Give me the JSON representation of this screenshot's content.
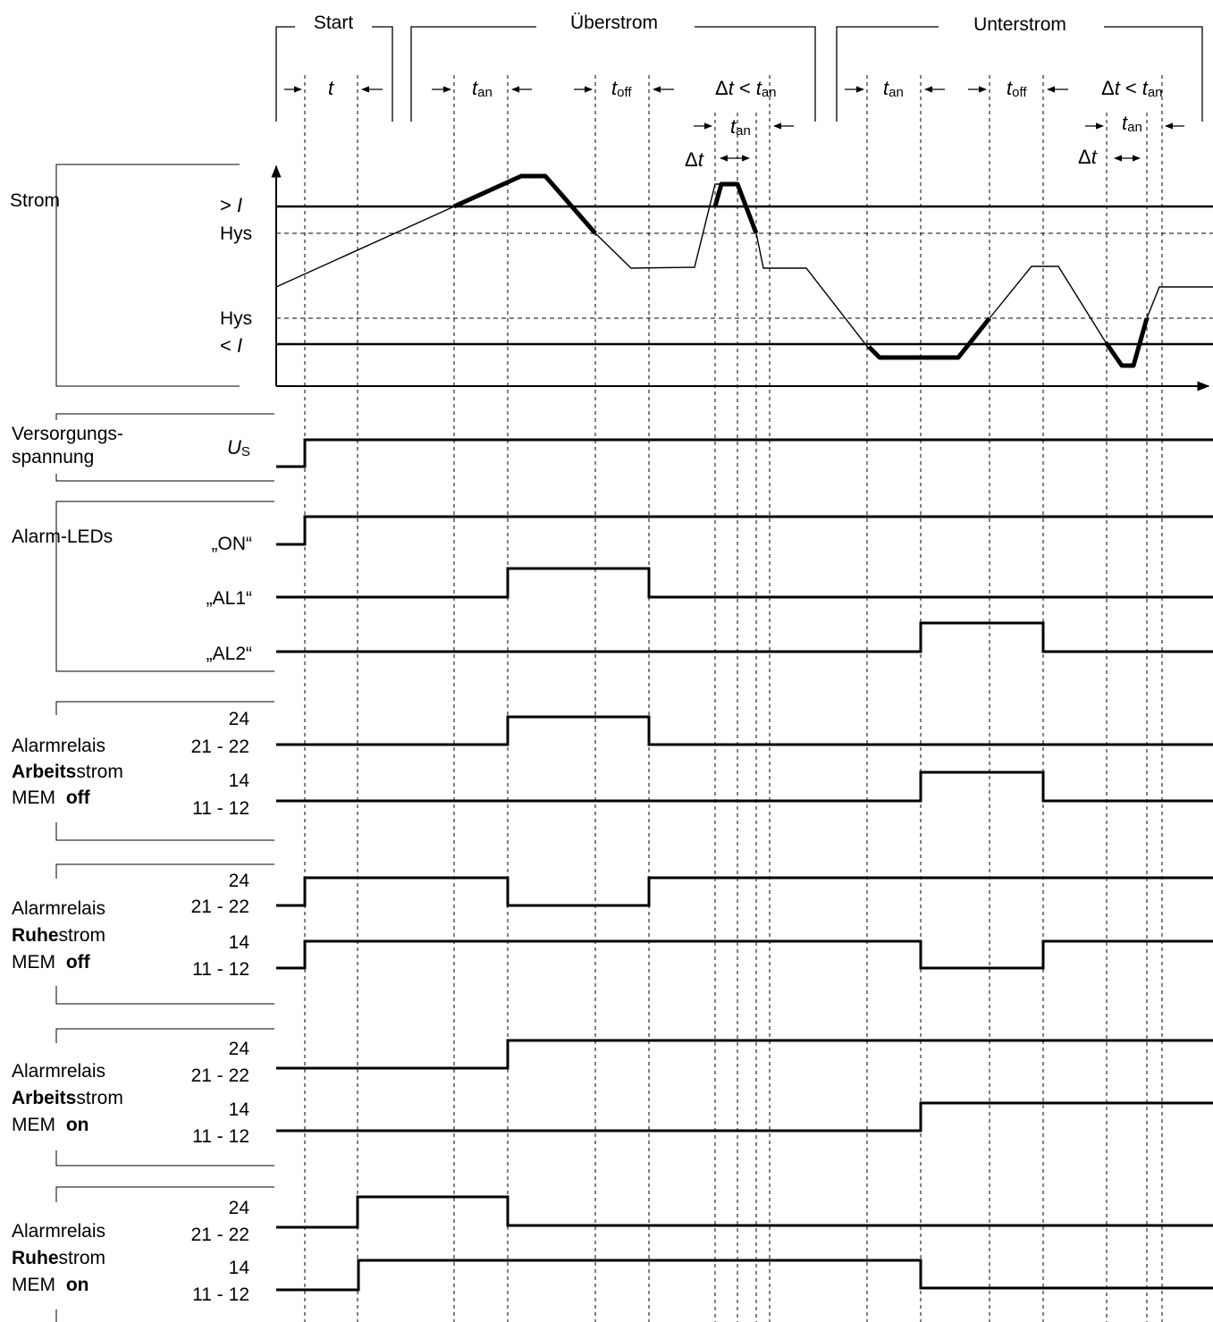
{
  "phases": {
    "start": "Start",
    "ueberstrom": "Überstrom",
    "unterstrom": "Unterstrom"
  },
  "timing": {
    "t": "t",
    "t_an": "t",
    "an_sub": "an",
    "t_off": "t",
    "off_sub": "off",
    "delta": "Δ",
    "less_than": "<"
  },
  "strom": {
    "title": "Strom",
    "over_threshold": "> I",
    "hys_upper": "Hys",
    "hys_lower": "Hys",
    "under_threshold": "< I"
  },
  "supply": {
    "label_line1": "Versorgungs-",
    "label_line2": "spannung",
    "symbol": "U",
    "symbol_sub": "S"
  },
  "leds": {
    "title": "Alarm-LEDs",
    "on": "„ON“",
    "al1": "„AL1“",
    "al2": "„AL2“"
  },
  "contacts": {
    "c24": "24",
    "c21_22": "21 - 22",
    "c14": "14",
    "c11_12": "11 - 12"
  },
  "relays": [
    {
      "line1": "Alarmrelais",
      "line2_bold": "Arbeits",
      "line2_rest": "strom",
      "line3": "MEM ",
      "line3_bold": "off"
    },
    {
      "line1": "Alarmrelais",
      "line2_bold": "Ruhe",
      "line2_rest": "strom",
      "line3": "MEM ",
      "line3_bold": "off"
    },
    {
      "line1": "Alarmrelais",
      "line2_bold": "Arbeits",
      "line2_rest": "strom",
      "line3": "MEM ",
      "line3_bold": "on"
    },
    {
      "line1": "Alarmrelais",
      "line2_bold": "Ruhe",
      "line2_rest": "strom",
      "line3": "MEM ",
      "line3_bold": "on"
    }
  ]
}
